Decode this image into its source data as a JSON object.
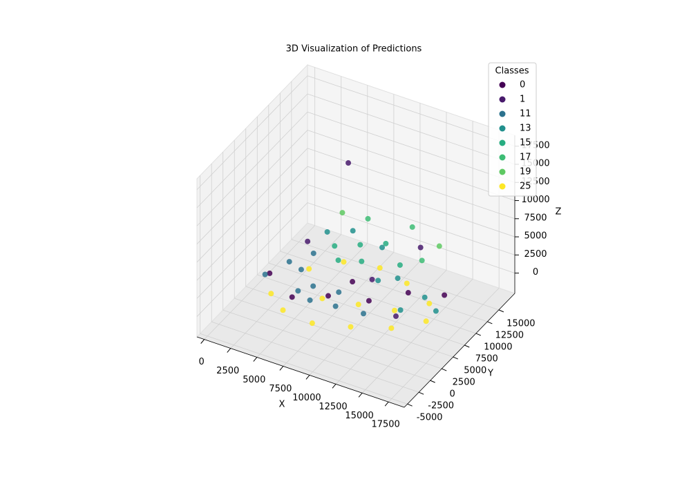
{
  "chart_data": {
    "type": "scatter3d",
    "title": "3D Visualization of Predictions",
    "x_label": "X",
    "y_label": "Y",
    "z_label": "Z",
    "xlim": [
      -700,
      19000
    ],
    "ylim": [
      -5700,
      18500
    ],
    "zlim": [
      -2800,
      19000
    ],
    "xticks": [
      0,
      2500,
      5000,
      7500,
      10000,
      12500,
      15000,
      17500
    ],
    "yticks": [
      -5000,
      -2500,
      0,
      2500,
      5000,
      7500,
      10000,
      12500,
      15000
    ],
    "zticks": [
      0,
      2500,
      5000,
      7500,
      10000,
      12500,
      15000,
      17500
    ],
    "grid": true,
    "legend_title": "Classes",
    "legend_position": "upper right",
    "series": [
      {
        "name": "0",
        "color": "#440154",
        "x": [
          2000,
          5000,
          8000,
          11000,
          13000,
          16000,
          9000
        ],
        "y": [
          4000,
          2000,
          3000,
          5000,
          9000,
          10000,
          6000
        ],
        "z": [
          1000,
          500,
          1500,
          1000,
          500,
          1000,
          2000
        ]
      },
      {
        "name": "1",
        "color": "#481a6c",
        "x": [
          6000,
          10000,
          14000,
          3000,
          12000
        ],
        "y": [
          12000,
          8000,
          4000,
          10000,
          14000
        ],
        "z": [
          13000,
          1500,
          1000,
          2000,
          3000
        ]
      },
      {
        "name": "11",
        "color": "#2c728e",
        "x": [
          2000,
          3000,
          4000,
          6000,
          8000,
          10000,
          12000,
          5000,
          7000,
          9000
        ],
        "y": [
          3000,
          6000,
          9000,
          1000,
          -1000,
          0,
          1500,
          4000,
          2000,
          3000
        ],
        "z": [
          1500,
          1800,
          1500,
          2500,
          3500,
          3000,
          2000,
          3000,
          3000,
          2500
        ]
      },
      {
        "name": "13",
        "color": "#21908d",
        "x": [
          4000,
          6000,
          9000,
          12000,
          15000,
          16500,
          14000,
          11000
        ],
        "y": [
          12000,
          13000,
          12500,
          9000,
          8000,
          7000,
          5000,
          7000
        ],
        "z": [
          2500,
          3000,
          2500,
          2000,
          1500,
          1000,
          1200,
          2500
        ]
      },
      {
        "name": "15",
        "color": "#27ad81",
        "x": [
          6000,
          8000,
          10000,
          12000,
          9000,
          7000
        ],
        "y": [
          9000,
          10000,
          11000,
          9500,
          8000,
          7500
        ],
        "z": [
          3500,
          4000,
          4500,
          3500,
          3500,
          3000
        ]
      },
      {
        "name": "17",
        "color": "#3dbc74",
        "x": [
          7000,
          11000,
          13000
        ],
        "y": [
          14000,
          14500,
          12000
        ],
        "z": [
          4500,
          5000,
          3000
        ]
      },
      {
        "name": "19",
        "color": "#5ec962",
        "x": [
          5000,
          14000
        ],
        "y": [
          13000,
          13500
        ],
        "z": [
          5000,
          4500
        ]
      },
      {
        "name": "25",
        "color": "#fde725",
        "x": [
          3000,
          5000,
          8000,
          11000,
          14000,
          16000,
          15000,
          12000,
          9000,
          6000,
          4000,
          13000,
          10000,
          7000
        ],
        "y": [
          2000,
          0,
          -500,
          1000,
          3000,
          6000,
          9000,
          11000,
          12000,
          11000,
          8000,
          6000,
          5000,
          4000
        ],
        "z": [
          0,
          0,
          0,
          0,
          0,
          0,
          0,
          0,
          0,
          0,
          0,
          0,
          0,
          0
        ]
      }
    ]
  }
}
